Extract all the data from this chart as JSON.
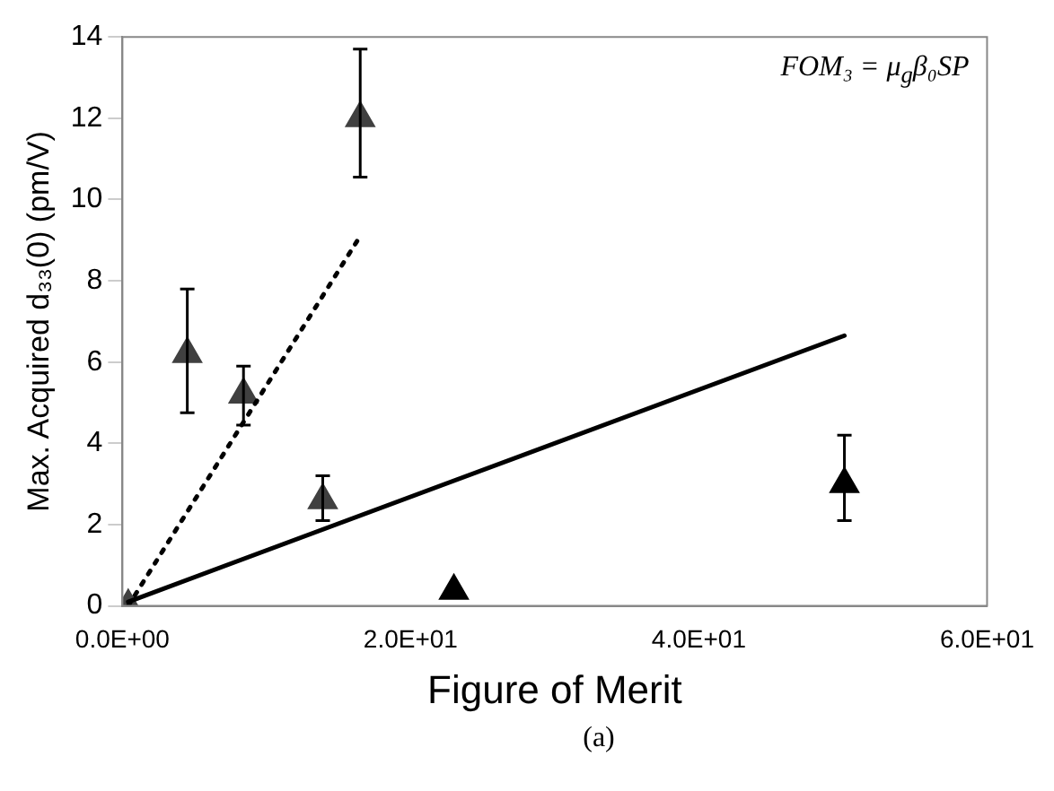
{
  "chart_data": {
    "type": "scatter",
    "xlabel": "Figure of Merit",
    "ylabel": "Max. Acquired d₃₃(0) (pm/V)",
    "annotations": [
      "FOM₃ = μ$_{g}$β₀SP",
      "(a)"
    ],
    "xlim": [
      0,
      60
    ],
    "xticks": [
      {
        "value": 0,
        "label": "0.0E+00"
      },
      {
        "value": 20,
        "label": "2.0E+01"
      },
      {
        "value": 40,
        "label": "4.0E+01"
      },
      {
        "value": 60,
        "label": "6.0E+01"
      }
    ],
    "ylim": [
      0,
      14
    ],
    "yticks": [
      0,
      2,
      4,
      6,
      8,
      10,
      12,
      14
    ],
    "grid": false,
    "legend": false,
    "series": [
      {
        "type": "line",
        "color": "#000000",
        "line_style": "dotted",
        "marker": "none",
        "x": [
          0.4,
          16.5
        ],
        "values": [
          0,
          9.1
        ]
      },
      {
        "type": "line",
        "color": "#000000",
        "line_style": "solid",
        "marker": "none",
        "x": [
          0.4,
          50.1
        ],
        "values": [
          0.1,
          6.65
        ]
      },
      {
        "type": "scatter",
        "color": "#404040",
        "marker": "triangle",
        "x": [
          0.4,
          4.5,
          8.4,
          13.9,
          16.5
        ],
        "values": [
          0,
          6.2,
          5.2,
          2.6,
          12.0
        ],
        "errors": [
          null,
          [
            4.75,
            7.8
          ],
          [
            4.45,
            5.9
          ],
          [
            2.1,
            3.2
          ],
          [
            10.55,
            13.7
          ]
        ]
      },
      {
        "type": "scatter",
        "color": "#000000",
        "marker": "triangle",
        "x": [
          23.0,
          50.1
        ],
        "values": [
          0.37,
          3.0
        ],
        "errors": [
          null,
          [
            2.1,
            4.2
          ]
        ]
      }
    ]
  }
}
